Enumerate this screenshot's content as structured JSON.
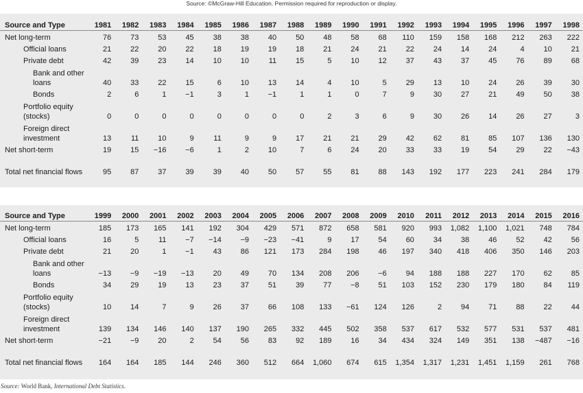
{
  "copyright": "Source: ©McGraw-Hill Education. Permission required for reproduction or display.",
  "tables": [
    {
      "header": "Source and Type",
      "years": [
        "1981",
        "1982",
        "1983",
        "1984",
        "1985",
        "1986",
        "1987",
        "1988",
        "1989",
        "1990",
        "1991",
        "1992",
        "1993",
        "1994",
        "1995",
        "1996",
        "1997",
        "1998"
      ],
      "rows": [
        {
          "label": "Net long-term",
          "indent": 0,
          "values": [
            "76",
            "73",
            "53",
            "45",
            "38",
            "38",
            "40",
            "50",
            "48",
            "58",
            "68",
            "110",
            "159",
            "158",
            "168",
            "212",
            "263",
            "222"
          ]
        },
        {
          "label": "Official loans",
          "indent": 1,
          "values": [
            "21",
            "22",
            "20",
            "22",
            "18",
            "19",
            "19",
            "18",
            "21",
            "24",
            "21",
            "22",
            "24",
            "14",
            "24",
            "4",
            "10",
            "21"
          ]
        },
        {
          "label": "Private debt",
          "indent": 1,
          "values": [
            "42",
            "39",
            "23",
            "14",
            "10",
            "10",
            "11",
            "15",
            "5",
            "10",
            "12",
            "37",
            "43",
            "37",
            "45",
            "76",
            "89",
            "68"
          ]
        },
        {
          "label": "Bank and other loans",
          "indent": 2,
          "tall": true,
          "values": [
            "40",
            "33",
            "22",
            "15",
            "6",
            "10",
            "13",
            "14",
            "4",
            "10",
            "5",
            "29",
            "13",
            "10",
            "24",
            "26",
            "39",
            "30"
          ]
        },
        {
          "label": "Bonds",
          "indent": 2,
          "values": [
            "2",
            "6",
            "1",
            "−1",
            "3",
            "1",
            "−1",
            "1",
            "1",
            "0",
            "7",
            "9",
            "30",
            "27",
            "21",
            "49",
            "50",
            "38"
          ]
        },
        {
          "label": "Portfolio equity (stocks)",
          "indent": 1,
          "tall": true,
          "values": [
            "0",
            "0",
            "0",
            "0",
            "0",
            "0",
            "0",
            "0",
            "2",
            "3",
            "6",
            "9",
            "30",
            "26",
            "14",
            "26",
            "27",
            "3"
          ]
        },
        {
          "label": "Foreign direct investment",
          "indent": 1,
          "tall": true,
          "values": [
            "13",
            "11",
            "10",
            "9",
            "11",
            "9",
            "9",
            "17",
            "21",
            "21",
            "29",
            "42",
            "62",
            "81",
            "85",
            "107",
            "136",
            "130"
          ]
        },
        {
          "label": "Net short-term",
          "indent": 0,
          "values": [
            "19",
            "15",
            "−16",
            "−6",
            "1",
            "2",
            "10",
            "7",
            "6",
            "24",
            "20",
            "33",
            "33",
            "19",
            "54",
            "29",
            "22",
            "−43"
          ]
        },
        {
          "label": "Total net financial flows",
          "indent": 0,
          "tall": true,
          "values": [
            "95",
            "87",
            "37",
            "39",
            "39",
            "40",
            "50",
            "57",
            "55",
            "81",
            "88",
            "143",
            "192",
            "177",
            "223",
            "241",
            "284",
            "179"
          ]
        }
      ]
    },
    {
      "header": "Source and Type",
      "years": [
        "1999",
        "2000",
        "2001",
        "2002",
        "2003",
        "2004",
        "2005",
        "2006",
        "2007",
        "2008",
        "2009",
        "2010",
        "2011",
        "2012",
        "2013",
        "2014",
        "2015",
        "2016"
      ],
      "rows": [
        {
          "label": "Net long-term",
          "indent": 0,
          "values": [
            "185",
            "173",
            "165",
            "141",
            "192",
            "304",
            "429",
            "571",
            "872",
            "658",
            "581",
            "920",
            "993",
            "1,082",
            "1,100",
            "1,021",
            "748",
            "784"
          ]
        },
        {
          "label": "Official loans",
          "indent": 1,
          "values": [
            "16",
            "5",
            "11",
            "−7",
            "−14",
            "−9",
            "−23",
            "−41",
            "9",
            "17",
            "54",
            "60",
            "34",
            "38",
            "46",
            "52",
            "42",
            "56"
          ]
        },
        {
          "label": "Private debt",
          "indent": 1,
          "values": [
            "21",
            "20",
            "1",
            "−1",
            "43",
            "86",
            "121",
            "173",
            "284",
            "198",
            "46",
            "197",
            "340",
            "418",
            "406",
            "350",
            "146",
            "203"
          ]
        },
        {
          "label": "Bank and other loans",
          "indent": 2,
          "tall": true,
          "values": [
            "−13",
            "−9",
            "−19",
            "−13",
            "20",
            "49",
            "70",
            "134",
            "208",
            "206",
            "−6",
            "94",
            "188",
            "188",
            "227",
            "170",
            "62",
            "85"
          ]
        },
        {
          "label": "Bonds",
          "indent": 2,
          "values": [
            "34",
            "29",
            "19",
            "13",
            "23",
            "37",
            "51",
            "39",
            "77",
            "−8",
            "51",
            "103",
            "152",
            "230",
            "179",
            "180",
            "84",
            "119"
          ]
        },
        {
          "label": "Portfolio equity (stocks)",
          "indent": 1,
          "tall": true,
          "values": [
            "10",
            "14",
            "7",
            "9",
            "26",
            "37",
            "66",
            "108",
            "133",
            "−61",
            "124",
            "126",
            "2",
            "94",
            "71",
            "88",
            "22",
            "44"
          ]
        },
        {
          "label": "Foreign direct investment",
          "indent": 1,
          "tall": true,
          "values": [
            "139",
            "134",
            "146",
            "140",
            "137",
            "190",
            "265",
            "332",
            "445",
            "502",
            "358",
            "537",
            "617",
            "532",
            "577",
            "531",
            "537",
            "481"
          ]
        },
        {
          "label": "Net short-term",
          "indent": 0,
          "values": [
            "−21",
            "−9",
            "20",
            "2",
            "54",
            "56",
            "83",
            "92",
            "189",
            "16",
            "34",
            "434",
            "324",
            "149",
            "351",
            "138",
            "−487",
            "−16"
          ]
        },
        {
          "label": "Total net financial flows",
          "indent": 0,
          "tall": true,
          "values": [
            "164",
            "164",
            "185",
            "144",
            "246",
            "360",
            "512",
            "664",
            "1,060",
            "674",
            "615",
            "1,354",
            "1,317",
            "1,231",
            "1,451",
            "1,159",
            "261",
            "768"
          ]
        }
      ]
    }
  ],
  "source": {
    "prefix": "Source:",
    "text": " World Bank, ",
    "title": "International Debt Statistics",
    "suffix": "."
  }
}
